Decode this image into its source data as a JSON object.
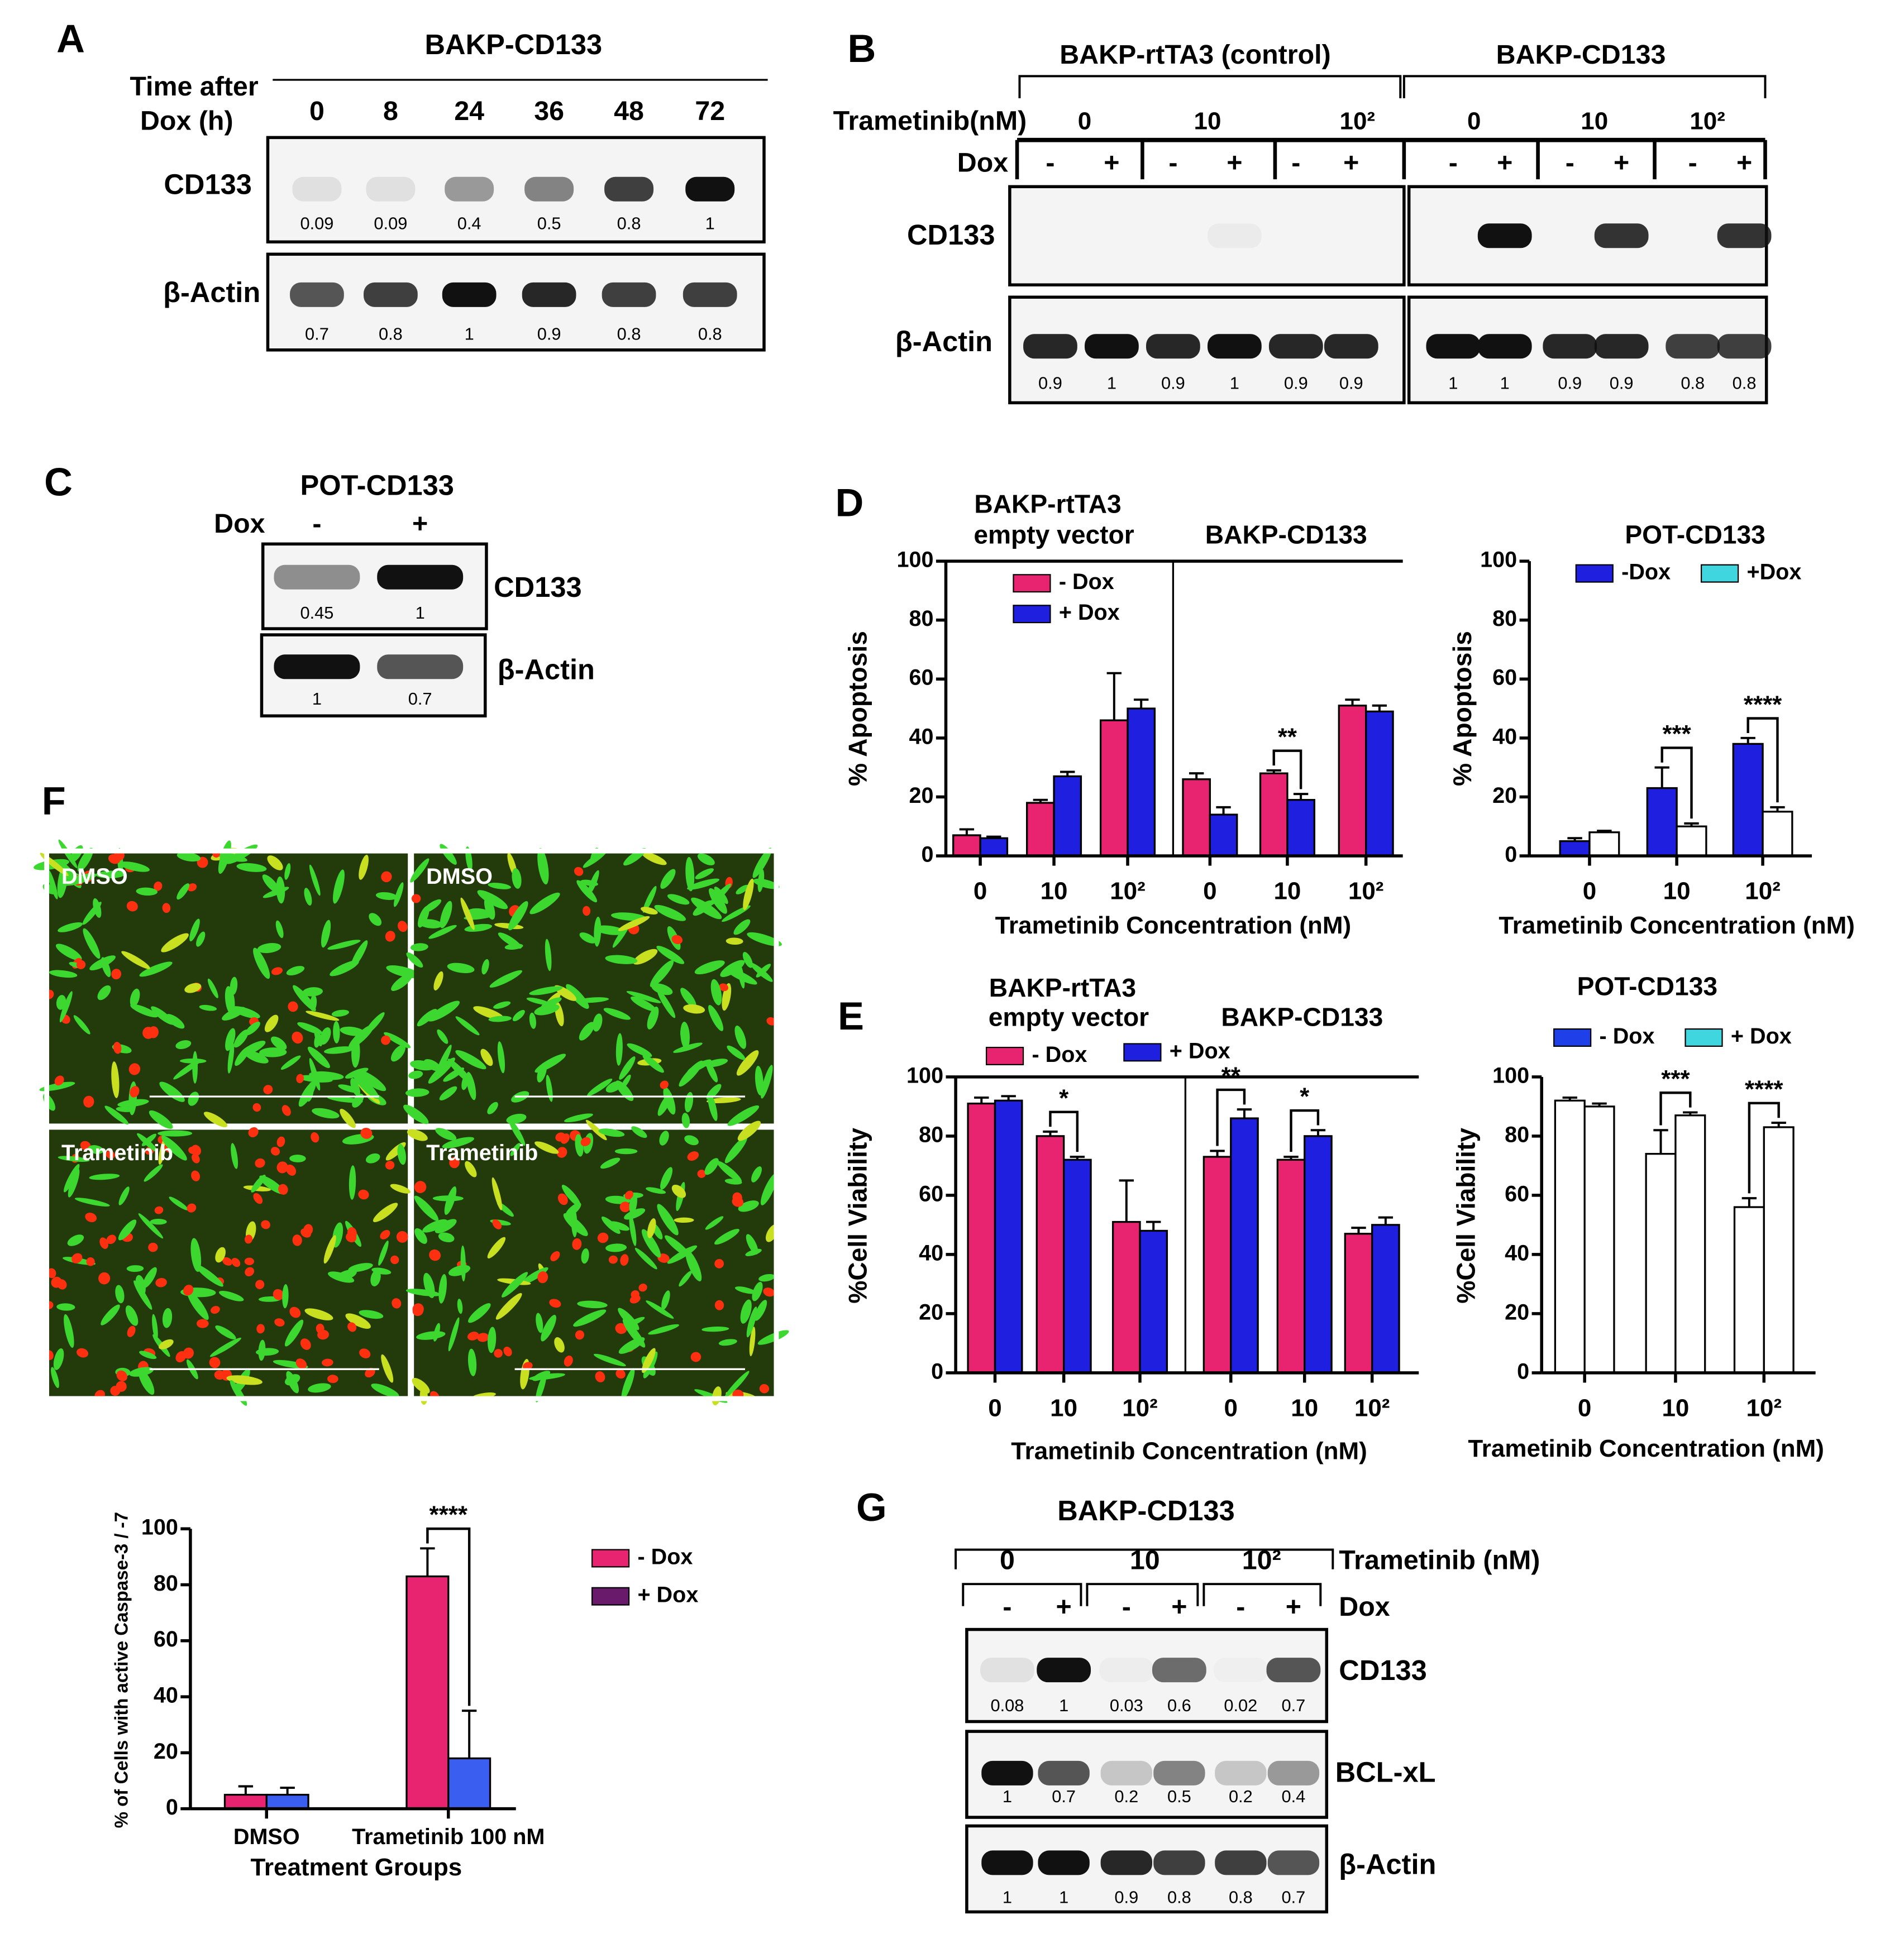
{
  "panels": {
    "A": {
      "label": "A",
      "title": "BAKP-CD133",
      "time_label": [
        "Time after",
        "Dox (h)"
      ],
      "lanes": [
        0,
        8,
        24,
        36,
        48,
        72
      ],
      "rows": [
        {
          "name": "CD133",
          "values": [
            0.09,
            0.09,
            0.4,
            0.5,
            0.8,
            1
          ]
        },
        {
          "name": "β-Actin",
          "values": [
            0.7,
            0.8,
            1,
            0.9,
            0.8,
            0.8
          ]
        }
      ]
    },
    "B": {
      "label": "B",
      "groups": [
        "BAKP-rtTA3 (control)",
        "BAKP-CD133"
      ],
      "treatment_label": "Trametinib(nM)",
      "concentrations": [
        "0",
        "10",
        "10²",
        "0",
        "10",
        "10²"
      ],
      "dox_label": "Dox",
      "dox": [
        "-",
        "+",
        "-",
        "+",
        "-",
        "+",
        "-",
        "+",
        "-",
        "+",
        "-",
        "+"
      ],
      "rows": [
        {
          "name": "CD133"
        },
        {
          "name": "β-Actin",
          "values": [
            0.9,
            1,
            0.9,
            1,
            0.9,
            0.9,
            1,
            1,
            0.9,
            0.9,
            0.8,
            0.8
          ]
        }
      ]
    },
    "C": {
      "label": "C",
      "title": "POT-CD133",
      "dox_label": "Dox",
      "dox": [
        "-",
        "+"
      ],
      "rows": [
        {
          "name": "CD133",
          "values": [
            0.45,
            1
          ]
        },
        {
          "name": "β-Actin",
          "values": [
            1,
            0.7
          ]
        }
      ]
    },
    "F": {
      "label": "F",
      "images": [
        "DMSO",
        "DMSO",
        "Trametinib",
        "Trametinib"
      ]
    },
    "G": {
      "label": "G",
      "title": "BAKP-CD133",
      "concentrations": [
        "0",
        "10",
        "10²"
      ],
      "treatment_label": "Trametinib (nM)",
      "dox_label": "Dox",
      "dox": [
        "-",
        "+",
        "-",
        "+",
        "-",
        "+"
      ],
      "rows": [
        {
          "name": "CD133",
          "values": [
            0.08,
            1,
            0.03,
            0.6,
            0.02,
            0.7
          ]
        },
        {
          "name": "BCL-xL",
          "values": [
            1,
            0.7,
            0.2,
            0.5,
            0.2,
            0.4
          ]
        },
        {
          "name": "β-Actin",
          "values": [
            1,
            1,
            0.9,
            0.8,
            0.8,
            0.7
          ]
        }
      ]
    }
  },
  "chart_data": [
    {
      "type": "bar",
      "label": "D",
      "groups": [
        [
          "BAKP-rtTA3",
          "empty vector"
        ],
        [
          "BAKP-CD133"
        ]
      ],
      "ylabel": "% Apoptosis",
      "xlabel": "Trametinib Concentration (nM)",
      "categories": [
        "0",
        "10",
        "10²",
        "0",
        "10",
        "10²"
      ],
      "series": [
        {
          "name": "- Dox",
          "color": "#e8236f",
          "values": [
            7,
            18,
            46,
            26,
            28,
            51
          ],
          "errors": [
            2,
            1,
            16,
            2,
            1,
            2
          ]
        },
        {
          "name": "+ Dox",
          "color": "#1f1fe0",
          "values": [
            6,
            27,
            50,
            14,
            19,
            49
          ],
          "errors": [
            0.5,
            1.5,
            3,
            2.5,
            2,
            2
          ]
        }
      ],
      "significance": [
        null,
        null,
        null,
        null,
        "**",
        null
      ],
      "ylim": [
        0,
        100
      ],
      "yticks": [
        0,
        20,
        40,
        60,
        80,
        100
      ]
    },
    {
      "type": "bar",
      "title": "POT-CD133",
      "ylabel": "% Apoptosis",
      "xlabel": "Trametinib Concentration (nM)",
      "categories": [
        "0",
        "10",
        "10²"
      ],
      "series": [
        {
          "name": "-Dox",
          "color": "#1f1fe0",
          "values": [
            5,
            23,
            38
          ],
          "errors": [
            1,
            7,
            2
          ]
        },
        {
          "name": "+Dox",
          "color": "#ffffff",
          "legend_color": "#3fd6e0",
          "values": [
            8,
            10,
            15
          ],
          "errors": [
            0.5,
            1,
            1.5
          ]
        }
      ],
      "significance": [
        null,
        "***",
        "****"
      ],
      "ylim": [
        0,
        100
      ],
      "yticks": [
        0,
        20,
        40,
        60,
        80,
        100
      ]
    },
    {
      "type": "bar",
      "label": "E",
      "groups": [
        [
          "BAKP-rtTA3",
          "empty vector"
        ],
        [
          "BAKP-CD133"
        ]
      ],
      "ylabel": "%Cell  Viability",
      "xlabel": "Trametinib Concentration (nM)",
      "categories": [
        "0",
        "10",
        "10²",
        "0",
        "10",
        "10²"
      ],
      "series": [
        {
          "name": "- Dox",
          "color": "#e8236f",
          "values": [
            91,
            80,
            51,
            73,
            72,
            47
          ],
          "errors": [
            2,
            1.5,
            14,
            2,
            1,
            2
          ]
        },
        {
          "name": "+ Dox",
          "color": "#1f1fe0",
          "values": [
            92,
            72,
            48,
            86,
            80,
            50
          ],
          "errors": [
            1.5,
            1,
            3,
            3,
            2,
            2.5
          ]
        }
      ],
      "significance": [
        null,
        "*",
        null,
        "**",
        "*",
        null
      ],
      "ylim": [
        0,
        100
      ],
      "yticks": [
        0,
        20,
        40,
        60,
        80,
        100
      ]
    },
    {
      "type": "bar",
      "title": "POT-CD133",
      "ylabel": "%Cell  Viability",
      "xlabel": "Trametinib Concentration (nM)",
      "categories": [
        "0",
        "10",
        "10²"
      ],
      "series": [
        {
          "name": "- Dox",
          "color": "#ffffff",
          "legend_color": "#1f3fe8",
          "values": [
            92,
            74,
            56
          ],
          "errors": [
            1,
            8,
            3
          ]
        },
        {
          "name": "+ Dox",
          "color": "#ffffff",
          "legend_color": "#3fd6e0",
          "values": [
            90,
            87,
            83
          ],
          "errors": [
            1,
            1,
            1.5
          ]
        }
      ],
      "significance": [
        null,
        "***",
        "****"
      ],
      "ylim": [
        0,
        100
      ],
      "yticks": [
        0,
        20,
        40,
        60,
        80,
        100
      ]
    },
    {
      "type": "bar",
      "ylabel": "% of Cells with active Caspase-3 / -7",
      "xlabel": "Treatment Groups",
      "categories": [
        "DMSO",
        "Trametinib 100 nM"
      ],
      "series": [
        {
          "name": "- Dox",
          "color": "#e8236f",
          "values": [
            5,
            83
          ],
          "errors": [
            3,
            10
          ]
        },
        {
          "name": "+ Dox",
          "color": "#3a5ef0",
          "legend_color": "#6a1a6a",
          "values": [
            5,
            18
          ],
          "errors": [
            2.5,
            17
          ]
        }
      ],
      "significance": [
        null,
        "****"
      ],
      "ylim": [
        0,
        100
      ],
      "yticks": [
        0,
        20,
        40,
        60,
        80,
        100
      ]
    }
  ]
}
